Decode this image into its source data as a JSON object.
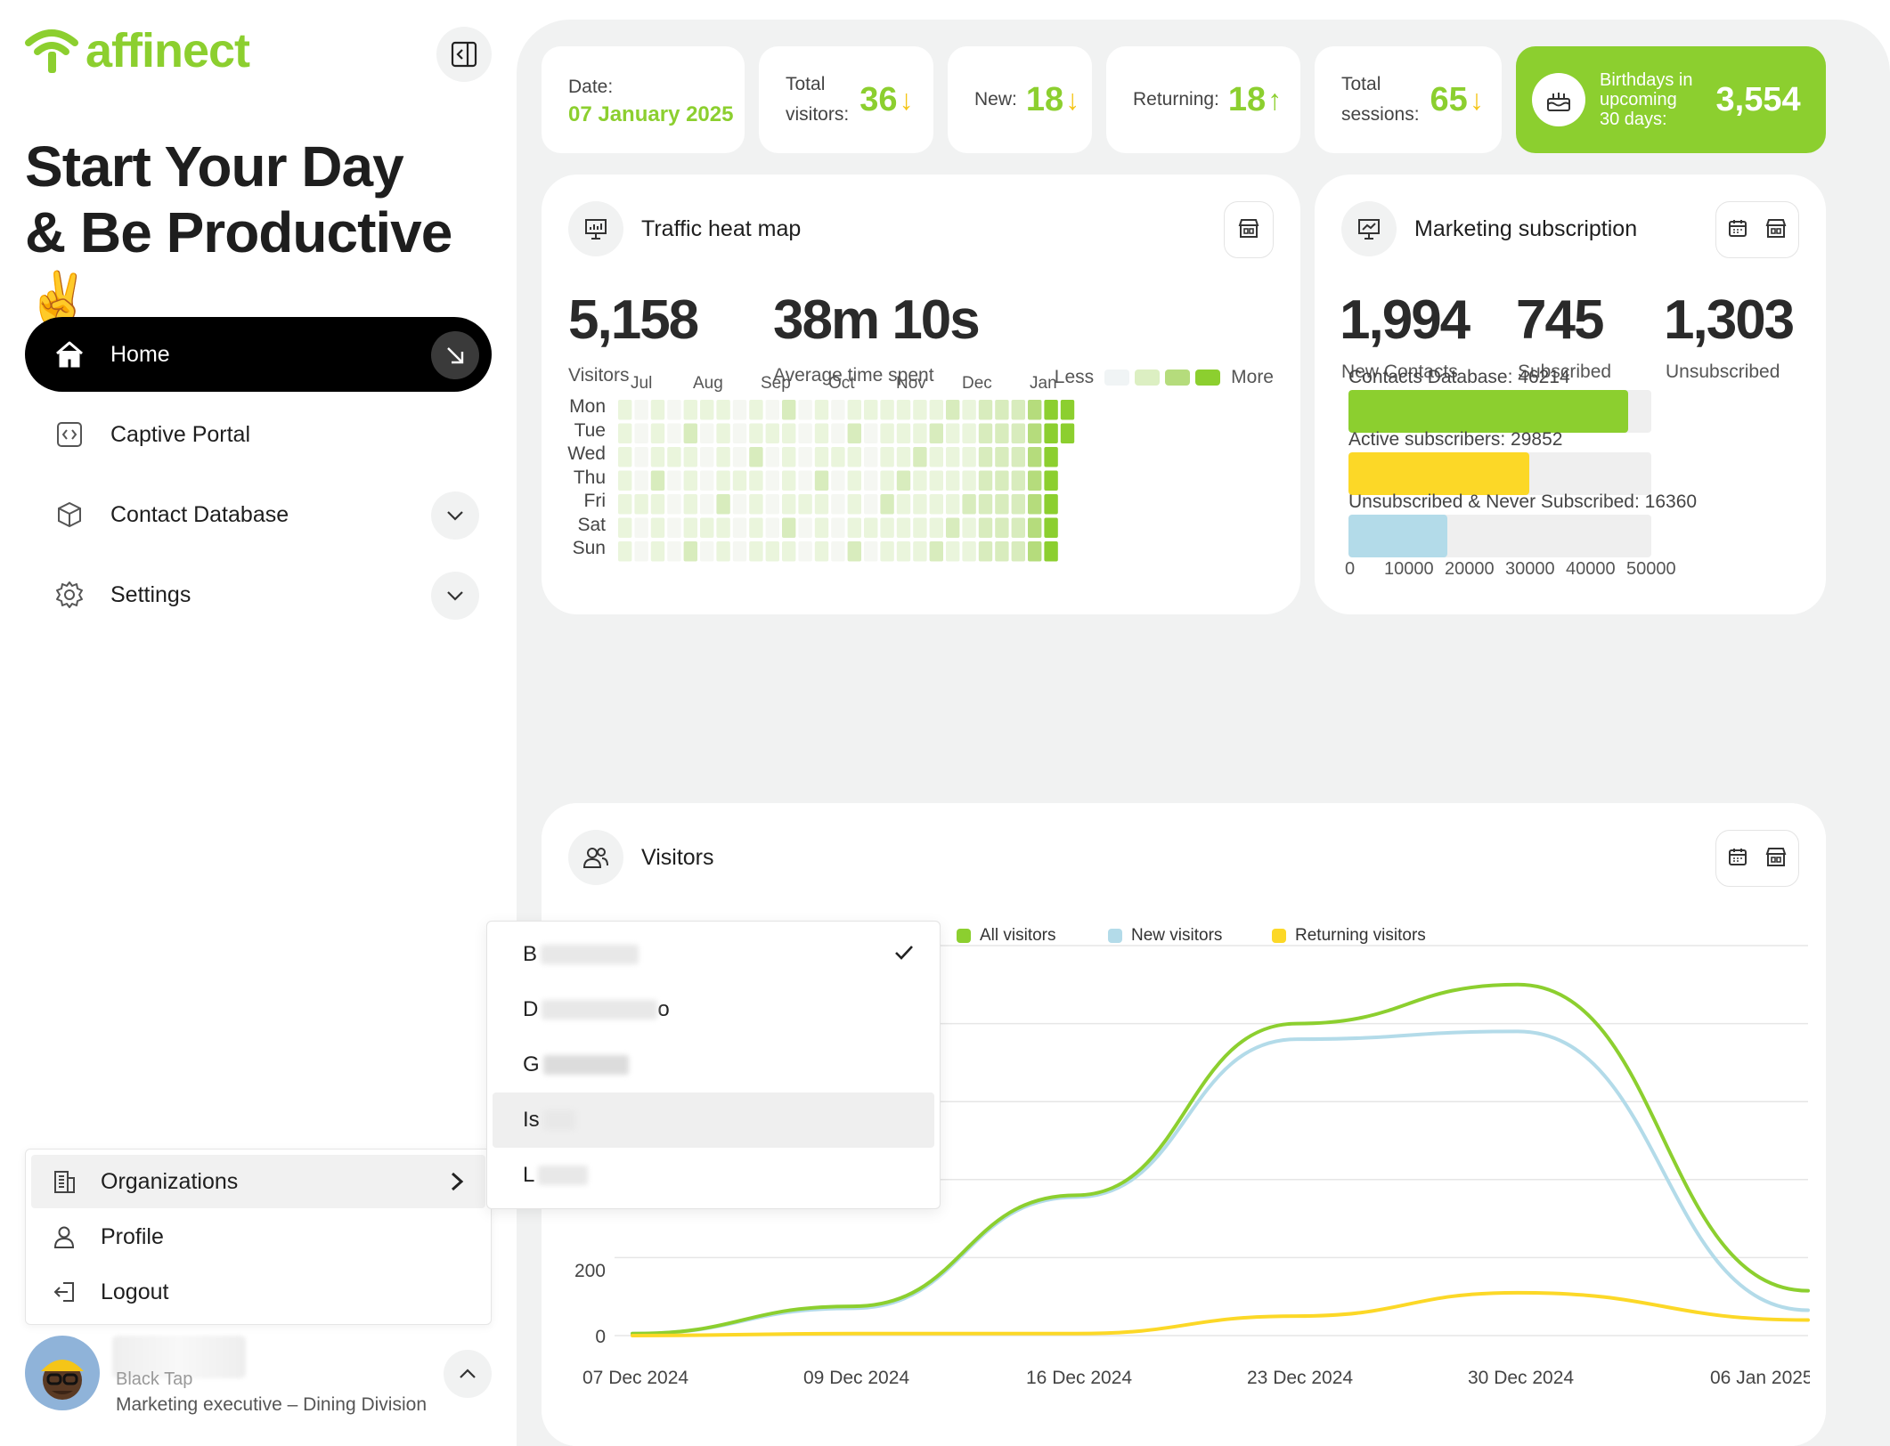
{
  "brand": {
    "name": "affinect",
    "color": "#8ccf2f"
  },
  "hero": {
    "line1": "Start Your Day",
    "line2": "& Be Productive",
    "emoji": "✌️"
  },
  "nav": {
    "items": [
      {
        "label": "Home",
        "icon": "home-icon",
        "active": true
      },
      {
        "label": "Captive Portal",
        "icon": "code-icon"
      },
      {
        "label": "Contact Database",
        "icon": "cube-icon"
      },
      {
        "label": "Settings",
        "icon": "gear-icon"
      }
    ]
  },
  "user_menu": {
    "items": [
      {
        "label": "Organizations",
        "icon": "building-icon"
      },
      {
        "label": "Profile",
        "icon": "user-icon"
      },
      {
        "label": "Logout",
        "icon": "logout-icon"
      }
    ]
  },
  "profile": {
    "name": "Black Tap",
    "role": "Marketing executive – Dining Division"
  },
  "stats": {
    "date": {
      "label": "Date:",
      "value": "07 January 2025"
    },
    "total_visitors": {
      "label1": "Total",
      "label2": "visitors:",
      "value": "36",
      "trend": "down"
    },
    "new": {
      "label": "New:",
      "value": "18",
      "trend": "down"
    },
    "returning": {
      "label": "Returning:",
      "value": "18",
      "trend": "up"
    },
    "total_sessions": {
      "label1": "Total",
      "label2": "sessions:",
      "value": "65",
      "trend": "down"
    },
    "birthdays": {
      "line1": "Birthdays in",
      "line2": "upcoming",
      "line3": "30 days:",
      "value": "3,554"
    }
  },
  "heatmap": {
    "title": "Traffic heat map",
    "visitors": {
      "value": "5,158",
      "label": "Visitors"
    },
    "avg_time": {
      "value": "38m 10s",
      "label": "Average time spent"
    },
    "legend": {
      "less": "Less",
      "more": "More"
    },
    "months": [
      "Jul",
      "Aug",
      "Sep",
      "Oct",
      "Nov",
      "Dec",
      "Jan"
    ],
    "days": [
      "Mon",
      "Tue",
      "Wed",
      "Thu",
      "Fri",
      "Sat",
      "Sun"
    ],
    "colors": [
      "#f5f7f2",
      "#eaf5dc",
      "#d8ecbd",
      "#b5dc7c",
      "#8ccf2f"
    ]
  },
  "marketing": {
    "title": "Marketing subscription",
    "kpis": [
      {
        "value": "1,994",
        "label": "New Contacts"
      },
      {
        "value": "745",
        "label": "Subscribed"
      },
      {
        "value": "1,303",
        "label": "Unsubscribed"
      }
    ],
    "chart_data": {
      "type": "bar",
      "categories": [
        "Contacts Database: 46214",
        "Active subscribers: 29852",
        "Unsubscribed & Never Subscribed: 16360"
      ],
      "values": [
        46214,
        29852,
        16360
      ],
      "colors": [
        "#8ccf2f",
        "#fcd827",
        "#b3dbe9"
      ],
      "xlim": [
        0,
        50000
      ],
      "ticks": [
        "0",
        "10000",
        "20000",
        "30000",
        "40000",
        "50000"
      ]
    }
  },
  "visitors_chart": {
    "title": "Visitors",
    "legend": [
      {
        "name": "All visitors",
        "color": "#8ccf2f"
      },
      {
        "name": "New visitors",
        "color": "#b3dbe9"
      },
      {
        "name": "Returning visitors",
        "color": "#fcd827"
      }
    ],
    "yticks": [
      "200",
      "0"
    ],
    "xticks": [
      "07 Dec 2024",
      "09 Dec 2024",
      "16 Dec 2024",
      "23 Dec 2024",
      "30 Dec 2024",
      "06 Jan 2025"
    ],
    "chart_data": {
      "type": "line",
      "x": [
        "07 Dec 2024",
        "09 Dec 2024",
        "16 Dec 2024",
        "23 Dec 2024",
        "30 Dec 2024",
        "06 Jan 2025"
      ],
      "ylim": [
        0,
        1000
      ],
      "series": [
        {
          "name": "All visitors",
          "values": [
            5,
            75,
            360,
            800,
            900,
            115
          ]
        },
        {
          "name": "New visitors",
          "values": [
            5,
            70,
            355,
            760,
            780,
            65
          ]
        },
        {
          "name": "Returning visitors",
          "values": [
            0,
            5,
            5,
            50,
            110,
            40
          ]
        }
      ]
    }
  },
  "dropdown": {
    "items": [
      {
        "label": "B",
        "selected": true
      },
      {
        "label": "D",
        "suffix": "o"
      },
      {
        "label": "G"
      },
      {
        "label": "Is",
        "hover": true
      },
      {
        "label": "L"
      }
    ]
  }
}
